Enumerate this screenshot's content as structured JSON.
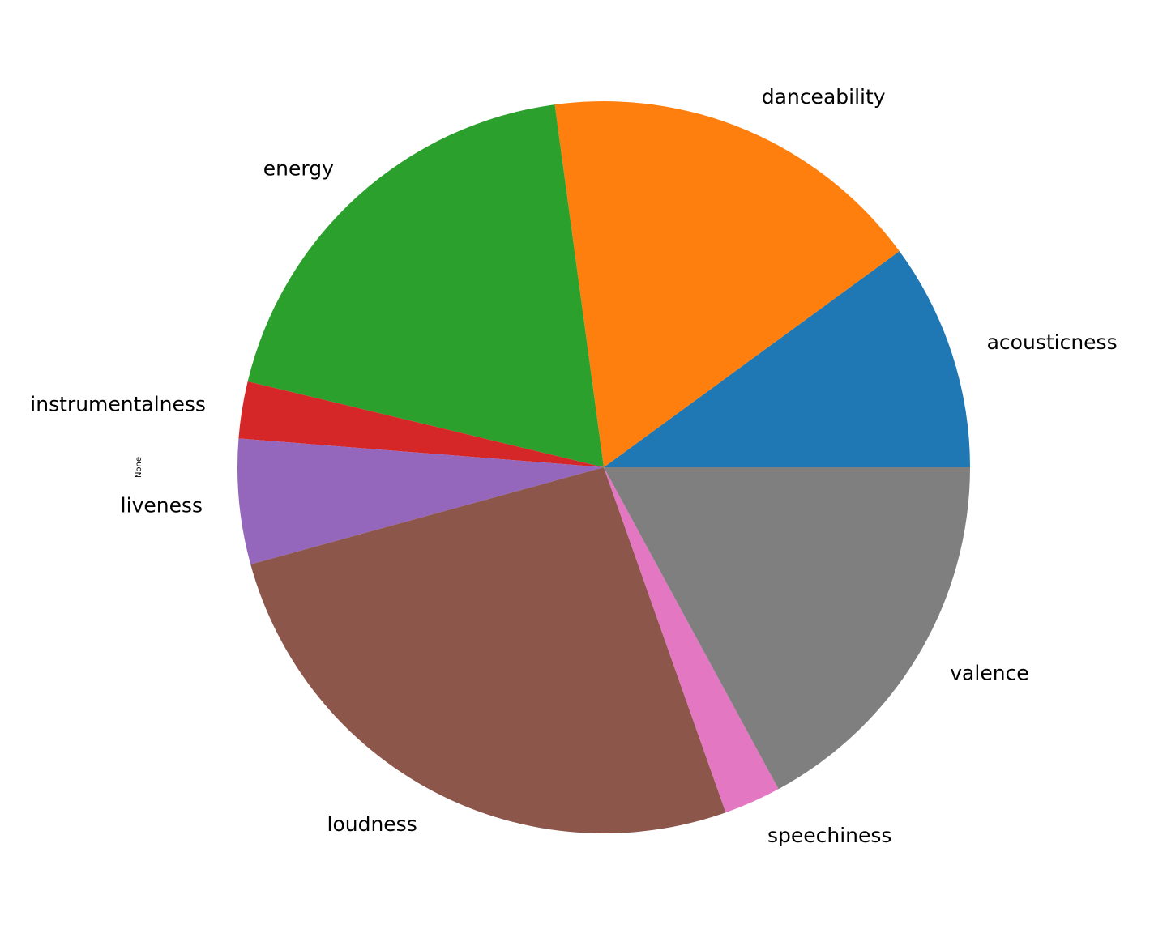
{
  "chart_data": {
    "type": "pie",
    "title": "",
    "ylabel": "None",
    "start_angle_deg": 0,
    "direction": "counterclockwise",
    "labels": [
      "acousticness",
      "danceability",
      "energy",
      "instrumentalness",
      "liveness",
      "loudness",
      "speechiness",
      "valence"
    ],
    "values": [
      0.1,
      0.17,
      0.19,
      0.025,
      0.055,
      0.26,
      0.025,
      0.17
    ],
    "colors": [
      "#1f77b4",
      "#ff7f0e",
      "#2ca02c",
      "#d62728",
      "#9467bd",
      "#8c564b",
      "#e377c2",
      "#7f7f7f"
    ]
  }
}
